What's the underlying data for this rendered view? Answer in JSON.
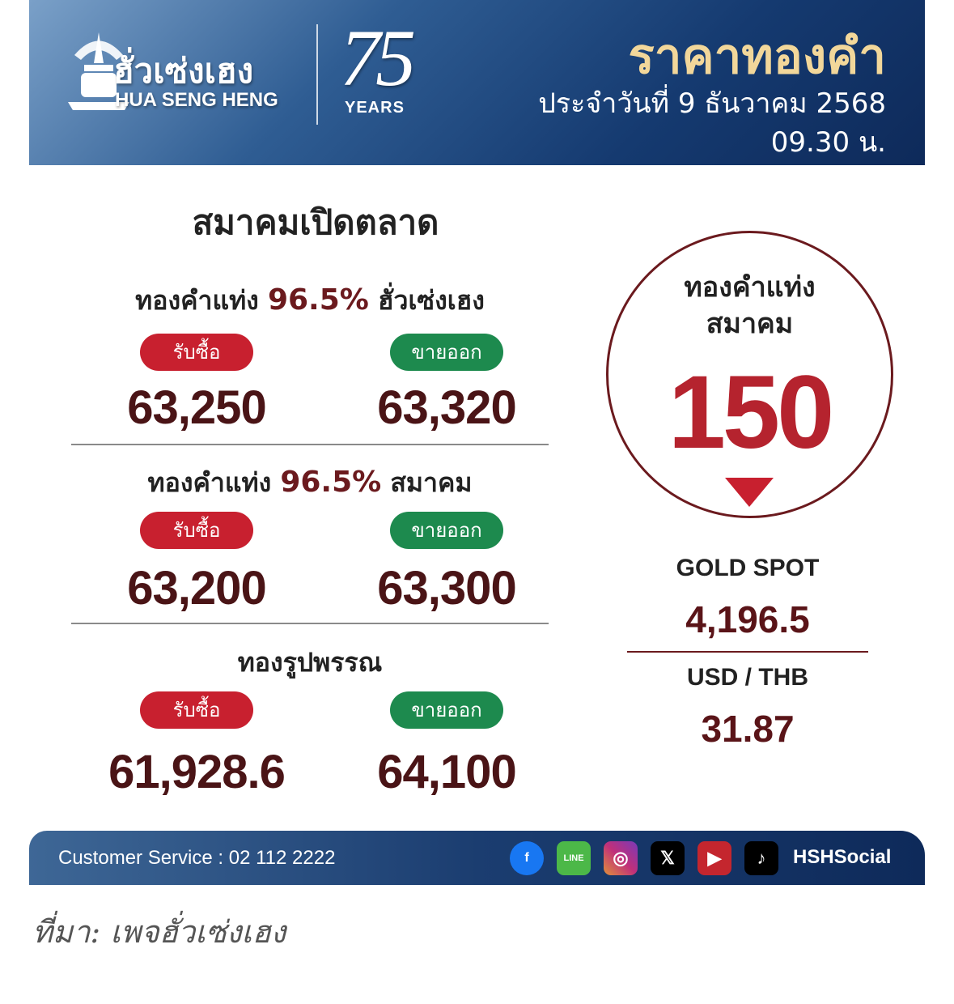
{
  "header": {
    "brand_th": "ฮั่วเซ่งเฮง",
    "brand_en": "HUA SENG HENG",
    "anniversary_number": "75",
    "anniversary_label": "YEARS",
    "title": "ราคาทองคำ",
    "date": "ประจำวันที่ 9 ธันวาคม 2568",
    "time": "09.30 น."
  },
  "main": {
    "title": "สมาคมเปิดตลาด",
    "sections": [
      {
        "heading_pre": "ทองคำแท่ง",
        "heading_pct": "96.5%",
        "heading_post": "ฮั่วเซ่งเฮง",
        "buy_label": "รับซื้อ",
        "sell_label": "ขายออก",
        "buy": "63,250",
        "sell": "63,320"
      },
      {
        "heading_pre": "ทองคำแท่ง",
        "heading_pct": "96.5%",
        "heading_post": "สมาคม",
        "buy_label": "รับซื้อ",
        "sell_label": "ขายออก",
        "buy": "63,200",
        "sell": "63,300"
      },
      {
        "heading_pre": "ทองรูปพรรณ",
        "heading_pct": "",
        "heading_post": "",
        "buy_label": "รับซื้อ",
        "sell_label": "ขายออก",
        "buy": "61,928.6",
        "sell": "64,100"
      }
    ]
  },
  "change": {
    "line1": "ทองคำแท่ง",
    "line2": "สมาคม",
    "value": "150",
    "direction": "down",
    "color": "#c8202f"
  },
  "market": {
    "gold_spot_label": "GOLD SPOT",
    "gold_spot": "4,196.5",
    "usd_thb_label": "USD / THB",
    "usd_thb": "31.87"
  },
  "footer": {
    "customer_service": "Customer Service : 02 112 2222",
    "social": [
      {
        "icon": "facebook-icon",
        "label": "f"
      },
      {
        "icon": "line-icon",
        "label": "LINE"
      },
      {
        "icon": "instagram-icon",
        "label": "◎"
      },
      {
        "icon": "x-icon",
        "label": "𝕏"
      },
      {
        "icon": "youtube-icon",
        "label": "▶"
      },
      {
        "icon": "tiktok-icon",
        "label": "♪"
      }
    ],
    "handle": "HSHSocial"
  },
  "source": "ที่มา: เพจฮั่วเซ่งเฮง",
  "colors": {
    "buy": "#c8202f",
    "sell": "#1d8a4e",
    "price": "#4a1416",
    "title_gold": "#f2d79a"
  }
}
